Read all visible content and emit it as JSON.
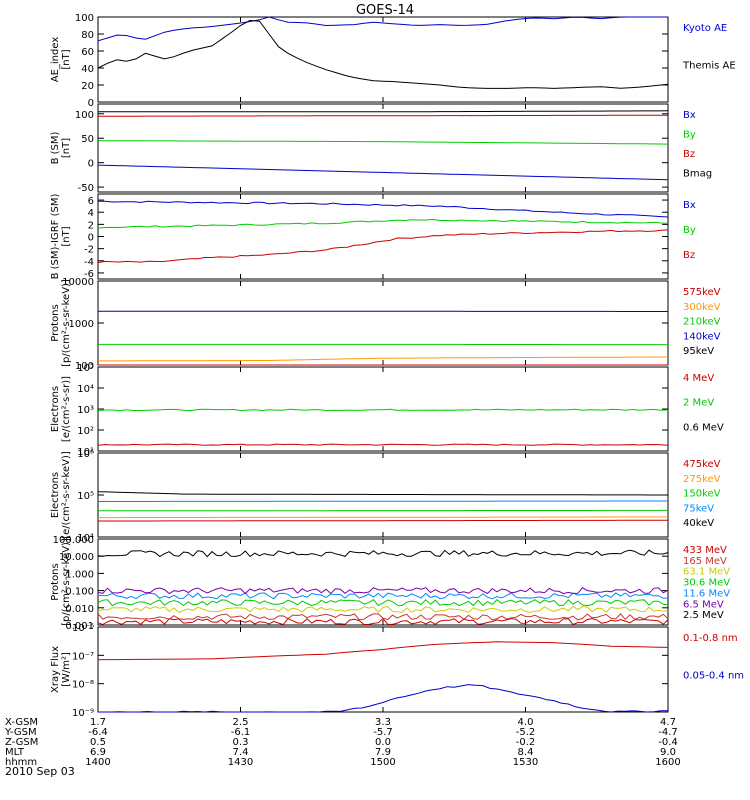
{
  "title": "GOES-14",
  "footer": {
    "rows": [
      {
        "label": "X-GSM",
        "values": [
          "1.7",
          "2.5",
          "3.3",
          "4.0",
          "4.7"
        ]
      },
      {
        "label": "Y-GSM",
        "values": [
          "-6.4",
          "-6.1",
          "-5.7",
          "-5.2",
          "-4.7"
        ]
      },
      {
        "label": "Z-GSM",
        "values": [
          "0.5",
          "0.3",
          "0.0",
          "-0.2",
          "-0.4"
        ]
      },
      {
        "label": "MLT",
        "values": [
          "6.9",
          "7.4",
          "7.9",
          "8.4",
          "9.0"
        ]
      },
      {
        "label": "hhmm",
        "values": [
          "1400",
          "1430",
          "1500",
          "1530",
          "1600"
        ]
      }
    ],
    "date": "2010 Sep 03"
  },
  "chart_data": [
    {
      "type": "line",
      "id": "ae",
      "ylabel": "AE_index\n[nT]",
      "ylim": [
        0,
        100
      ],
      "yscale": "linear",
      "yticks": [
        0,
        20,
        40,
        60,
        80,
        100
      ],
      "ytick_labels": [
        "0",
        "20",
        "40",
        "60",
        "80",
        "100"
      ],
      "series": [
        {
          "name": "Kyoto AE",
          "color": "#0000cc",
          "style": "smooth",
          "values": [
            [
              0,
              72
            ],
            [
              4,
              80
            ],
            [
              8,
              73
            ],
            [
              12,
              83
            ],
            [
              16,
              87
            ],
            [
              19,
              88
            ],
            [
              24,
              92
            ],
            [
              28,
              96
            ],
            [
              30,
              100
            ],
            [
              33,
              94
            ],
            [
              37,
              93
            ],
            [
              40,
              90
            ],
            [
              45,
              91
            ],
            [
              48,
              94
            ],
            [
              52,
              92
            ],
            [
              56,
              90
            ],
            [
              60,
              91
            ],
            [
              64,
              90
            ],
            [
              68,
              91
            ],
            [
              72,
              96
            ],
            [
              76,
              99
            ],
            [
              80,
              98
            ],
            [
              84,
              100
            ],
            [
              88,
              98
            ],
            [
              92,
              100
            ],
            [
              96,
              101
            ],
            [
              100,
              101
            ]
          ]
        },
        {
          "name": "Themis AE",
          "color": "#000000",
          "style": "smooth",
          "values": [
            [
              0,
              40
            ],
            [
              3,
              50
            ],
            [
              6,
              47
            ],
            [
              8,
              58
            ],
            [
              12,
              50
            ],
            [
              16,
              60
            ],
            [
              20,
              66
            ],
            [
              23,
              80
            ],
            [
              26,
              95
            ],
            [
              28,
              98
            ],
            [
              30,
              80
            ],
            [
              32,
              62
            ],
            [
              36,
              48
            ],
            [
              40,
              38
            ],
            [
              44,
              30
            ],
            [
              48,
              25
            ],
            [
              52,
              24
            ],
            [
              56,
              22
            ],
            [
              60,
              20
            ],
            [
              64,
              17
            ],
            [
              68,
              16
            ],
            [
              72,
              16
            ],
            [
              76,
              17
            ],
            [
              80,
              16
            ],
            [
              84,
              17
            ],
            [
              88,
              18
            ],
            [
              92,
              16
            ],
            [
              96,
              18
            ],
            [
              100,
              21
            ]
          ]
        }
      ]
    },
    {
      "type": "line",
      "id": "bsm",
      "ylabel": "B (SM)\n[nT]",
      "ylim": [
        -60,
        120
      ],
      "yscale": "linear",
      "yticks": [
        -50,
        0,
        50,
        100
      ],
      "ytick_labels": [
        "-50",
        "0",
        "50",
        "100"
      ],
      "series": [
        {
          "name": "Bx",
          "color": "#0000cc",
          "style": "smooth",
          "values": [
            [
              0,
              -5
            ],
            [
              50,
              -20
            ],
            [
              100,
              -35
            ]
          ]
        },
        {
          "name": "By",
          "color": "#00cc00",
          "style": "smooth",
          "values": [
            [
              0,
              45
            ],
            [
              50,
              43
            ],
            [
              100,
              38
            ]
          ]
        },
        {
          "name": "Bz",
          "color": "#cc0000",
          "style": "smooth",
          "values": [
            [
              0,
              95
            ],
            [
              50,
              96
            ],
            [
              100,
              97
            ]
          ]
        },
        {
          "name": "Bmag",
          "color": "#000000",
          "style": "smooth",
          "values": [
            [
              0,
              104
            ],
            [
              50,
              104
            ],
            [
              100,
              106
            ]
          ]
        }
      ]
    },
    {
      "type": "line",
      "id": "bdiff",
      "ylabel": "B (SM)-IGRF (SM)\n[nT]",
      "ylim": [
        -7,
        7
      ],
      "yscale": "linear",
      "yticks": [
        -6,
        -4,
        -2,
        0,
        2,
        4,
        6
      ],
      "ytick_labels": [
        "-6",
        "-4",
        "-2",
        "0",
        "2",
        "4",
        "6"
      ],
      "series": [
        {
          "name": "Bx",
          "color": "#0000cc",
          "style": "jagged",
          "values": [
            [
              0,
              5.8
            ],
            [
              20,
              5.6
            ],
            [
              40,
              5.4
            ],
            [
              60,
              5.0
            ],
            [
              80,
              4.0
            ],
            [
              100,
              3.2
            ]
          ]
        },
        {
          "name": "By",
          "color": "#00cc00",
          "style": "jagged",
          "values": [
            [
              0,
              1.5
            ],
            [
              20,
              1.8
            ],
            [
              40,
              2.2
            ],
            [
              55,
              2.8
            ],
            [
              70,
              2.6
            ],
            [
              85,
              2.4
            ],
            [
              100,
              2.2
            ]
          ]
        },
        {
          "name": "Bz",
          "color": "#cc0000",
          "style": "jagged",
          "values": [
            [
              0,
              -4.2
            ],
            [
              10,
              -4.2
            ],
            [
              20,
              -3.5
            ],
            [
              30,
              -3.0
            ],
            [
              40,
              -2.2
            ],
            [
              45,
              -1.5
            ],
            [
              52,
              -0.4
            ],
            [
              60,
              0.2
            ],
            [
              70,
              0.5
            ],
            [
              80,
              0.7
            ],
            [
              90,
              0.9
            ],
            [
              100,
              1.0
            ]
          ]
        }
      ]
    },
    {
      "type": "line",
      "id": "protons-low",
      "ylabel": "Protons\n[p/(cm²-s-sr-keV)]",
      "ylim": [
        100,
        10000
      ],
      "yscale": "log",
      "yticks": [
        100,
        1000,
        10000
      ],
      "ytick_labels": [
        "100",
        "1000",
        "10000"
      ],
      "series": [
        {
          "name": "575keV",
          "color": "#cc0000",
          "style": "smooth",
          "values": [
            [
              0,
              95
            ],
            [
              50,
              98
            ],
            [
              100,
              97
            ]
          ]
        },
        {
          "name": "300keV",
          "color": "#ff9900",
          "style": "smooth",
          "values": [
            [
              0,
              125
            ],
            [
              30,
              128
            ],
            [
              50,
              145
            ],
            [
              70,
              150
            ],
            [
              100,
              155
            ]
          ]
        },
        {
          "name": "210keV",
          "color": "#00cc00",
          "style": "smooth",
          "values": [
            [
              0,
              310
            ],
            [
              50,
              310
            ],
            [
              100,
              305
            ]
          ]
        },
        {
          "name": "140keV",
          "color": "#0000cc",
          "style": "smooth",
          "values": [
            [
              0,
              1900
            ],
            [
              50,
              1900
            ],
            [
              100,
              1880
            ]
          ]
        },
        {
          "name": "95keV",
          "color": "#000000",
          "style": "smooth",
          "values": [
            [
              0,
              10100
            ],
            [
              50,
              10100
            ],
            [
              100,
              10100
            ]
          ]
        }
      ]
    },
    {
      "type": "line",
      "id": "electrons-high",
      "ylabel": "Electrons\n[e/(cm²-s-sr)]",
      "ylim": [
        10,
        100000
      ],
      "yscale": "log",
      "yticks": [
        10,
        100,
        1000,
        10000,
        100000
      ],
      "ytick_labels": [
        "10¹",
        "10²",
        "10³",
        "10⁴",
        "10⁵"
      ],
      "series": [
        {
          "name": "4 MeV",
          "color": "#cc0000",
          "style": "jagged",
          "values": [
            [
              0,
              20
            ],
            [
              100,
              20
            ]
          ]
        },
        {
          "name": "2 MeV",
          "color": "#00cc00",
          "style": "jagged",
          "values": [
            [
              0,
              900
            ],
            [
              100,
              920
            ]
          ]
        },
        {
          "name": "0.6 MeV",
          "color": "#000000",
          "style": "smooth",
          "values": [
            [
              0,
              110000
            ],
            [
              100,
              110000
            ]
          ]
        }
      ]
    },
    {
      "type": "line",
      "id": "electrons-low",
      "ylabel": "Electrons\n[e/(cm²-s-sr-keV)]",
      "ylim": [
        10000,
        1000000
      ],
      "yscale": "log",
      "yticks": [
        10000,
        100000,
        1000000
      ],
      "ytick_labels": [
        "10⁴",
        "10⁵",
        "10⁶"
      ],
      "series": [
        {
          "name": "475keV",
          "color": "#cc0000",
          "style": "smooth",
          "values": [
            [
              0,
              24000
            ],
            [
              100,
              25000
            ]
          ]
        },
        {
          "name": "275keV",
          "color": "#ff9900",
          "style": "smooth",
          "values": [
            [
              0,
              29000
            ],
            [
              100,
              30000
            ]
          ]
        },
        {
          "name": "150keV",
          "color": "#00cc00",
          "style": "smooth",
          "values": [
            [
              0,
              42000
            ],
            [
              100,
              43000
            ]
          ]
        },
        {
          "name": "75keV",
          "color": "#0088ff",
          "style": "smooth",
          "values": [
            [
              0,
              70000
            ],
            [
              100,
              72000
            ]
          ]
        },
        {
          "name": "40keV",
          "color": "#000000",
          "style": "smooth",
          "values": [
            [
              0,
              120000
            ],
            [
              15,
              105000
            ],
            [
              100,
              100000
            ]
          ]
        }
      ]
    },
    {
      "type": "line",
      "id": "protons-high",
      "ylabel": "Protons\n[p/(cm²-s-sr-keV)]",
      "ylim": [
        0.001,
        100
      ],
      "yscale": "log",
      "yticks": [
        0.001,
        0.01,
        0.1,
        1,
        10,
        100
      ],
      "ytick_labels": [
        "0.001",
        "0.010",
        "0.100",
        "1.000",
        "10.000",
        "100.000"
      ],
      "series": [
        {
          "name": "433 MeV",
          "color": "#cc0000",
          "style": "noisy",
          "values": [
            [
              0,
              0.0016
            ],
            [
              100,
              0.0016
            ]
          ]
        },
        {
          "name": "165 MeV",
          "color": "#cc3333",
          "style": "noisy",
          "values": [
            [
              0,
              0.003
            ],
            [
              100,
              0.003
            ]
          ]
        },
        {
          "name": "63.1 MeV",
          "color": "#cccc00",
          "style": "noisy",
          "values": [
            [
              0,
              0.008
            ],
            [
              100,
              0.008
            ]
          ]
        },
        {
          "name": "30.6 MeV",
          "color": "#00cc00",
          "style": "noisy",
          "values": [
            [
              0,
              0.02
            ],
            [
              100,
              0.02
            ]
          ]
        },
        {
          "name": "11.6 MeV",
          "color": "#0088ff",
          "style": "noisy",
          "values": [
            [
              0,
              0.05
            ],
            [
              100,
              0.05
            ]
          ]
        },
        {
          "name": "6.5 MeV",
          "color": "#7700aa",
          "style": "noisy",
          "values": [
            [
              0,
              0.1
            ],
            [
              100,
              0.1
            ]
          ]
        },
        {
          "name": "2.5 MeV",
          "color": "#000000",
          "style": "noisy",
          "values": [
            [
              0,
              14
            ],
            [
              100,
              15
            ]
          ]
        }
      ]
    },
    {
      "type": "line",
      "id": "xray",
      "ylabel": "Xray Flux\n[W/m²]",
      "ylim": [
        1e-09,
        1e-06
      ],
      "yscale": "log",
      "yticks": [
        1e-09,
        1e-08,
        1e-07,
        1e-06
      ],
      "ytick_labels": [
        "10⁻⁹",
        "10⁻⁸",
        "10⁻⁷",
        "10⁻⁶"
      ],
      "series": [
        {
          "name": "0.1-0.8 nm",
          "color": "#cc0000",
          "style": "smooth",
          "values": [
            [
              0,
              7e-08
            ],
            [
              20,
              7.5e-08
            ],
            [
              40,
              1.1e-07
            ],
            [
              50,
              1.6e-07
            ],
            [
              60,
              2.5e-07
            ],
            [
              70,
              3e-07
            ],
            [
              80,
              2.8e-07
            ],
            [
              90,
              2.1e-07
            ],
            [
              100,
              1.9e-07
            ]
          ]
        },
        {
          "name": "0.05-0.4 nm",
          "color": "#0000cc",
          "style": "jagged",
          "values": [
            [
              0,
              1e-09
            ],
            [
              30,
              1e-09
            ],
            [
              42,
              1e-09
            ],
            [
              48,
              1.6e-09
            ],
            [
              55,
              4e-09
            ],
            [
              60,
              7e-09
            ],
            [
              66,
              9e-09
            ],
            [
              72,
              5e-09
            ],
            [
              78,
              3e-09
            ],
            [
              84,
              1.5e-09
            ],
            [
              90,
              1e-09
            ],
            [
              100,
              1.1e-09
            ]
          ]
        }
      ]
    }
  ]
}
